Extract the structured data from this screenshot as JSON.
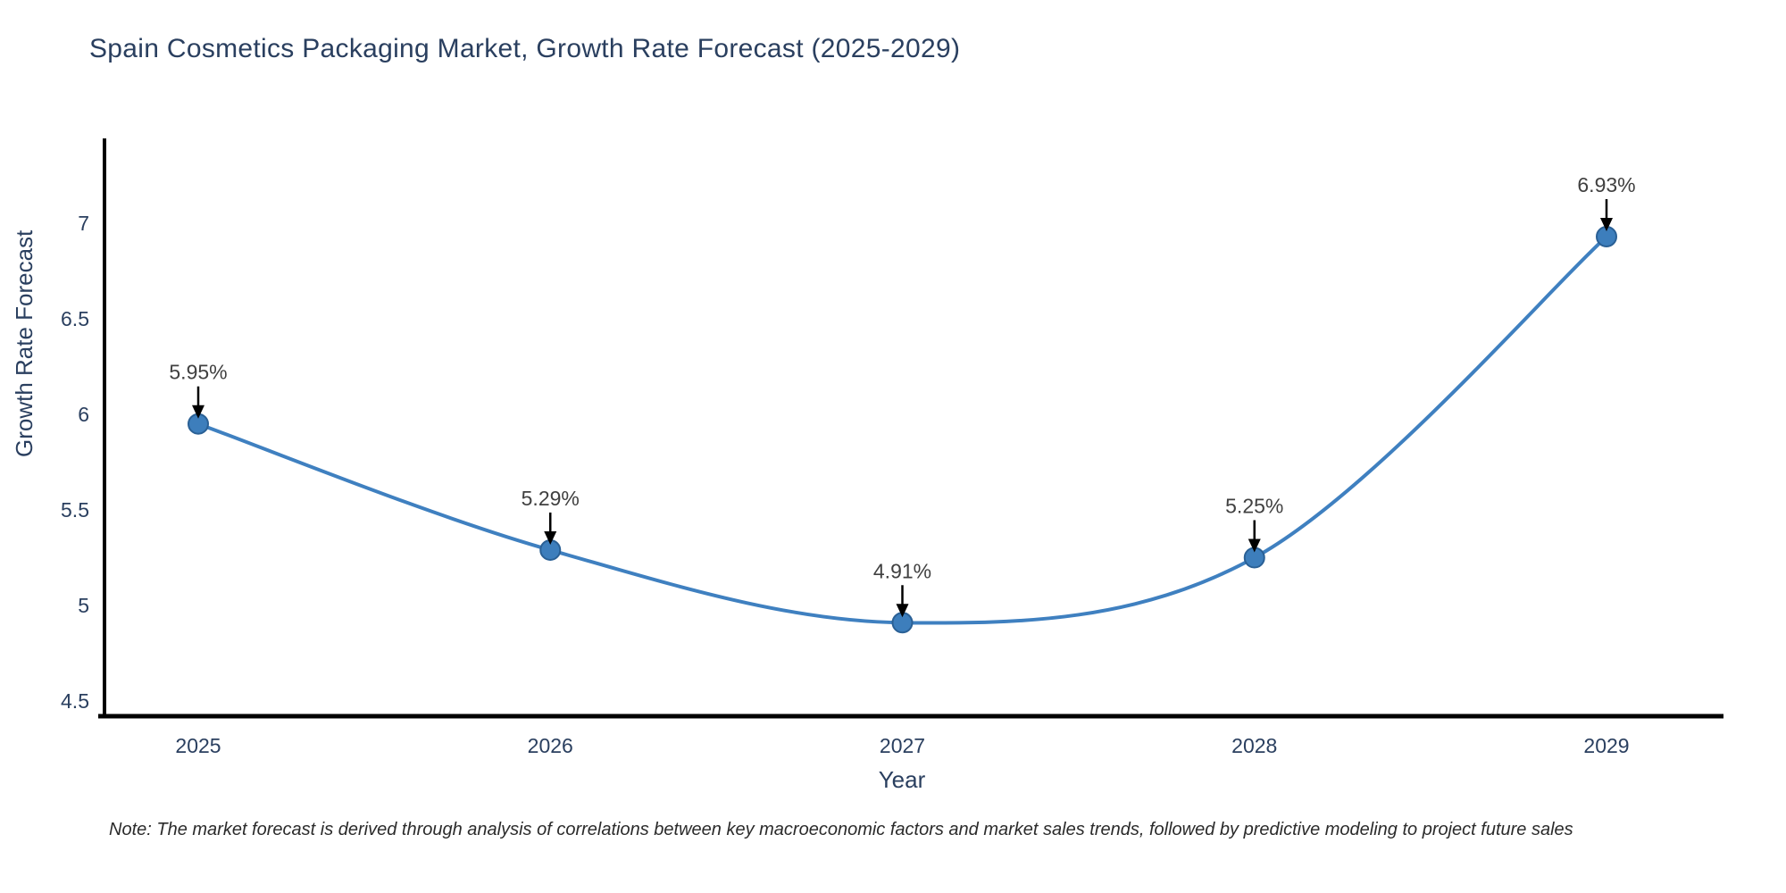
{
  "note": "Note: The market forecast is derived through analysis of correlations between key macroeconomic factors and market sales trends, followed by predictive modeling to project future sales",
  "colors": {
    "background": "#ffffff",
    "title_text": "#2a3f5f",
    "axis_text": "#2a3f5f",
    "annotation_text": "#404040",
    "line": "#3f80c0",
    "marker_fill": "#3d7ebc",
    "marker_edge": "#2a6095",
    "axis_line": "#000000",
    "arrow": "#000000",
    "note_text": "#2b2b2b"
  },
  "chart_data": {
    "type": "line",
    "title": "Spain Cosmetics Packaging Market, Growth Rate Forecast (2025-2029)",
    "xlabel": "Year",
    "ylabel": "Growth Rate Forecast",
    "x": [
      "2025",
      "2026",
      "2027",
      "2028",
      "2029"
    ],
    "values": [
      5.95,
      5.29,
      4.91,
      5.25,
      6.93
    ],
    "point_labels": [
      "5.95%",
      "5.29%",
      "4.91%",
      "5.25%",
      "6.93%"
    ],
    "ytick_labels": [
      "4.5",
      "5",
      "5.5",
      "6",
      "6.5",
      "7"
    ],
    "ytick_values": [
      4.5,
      5,
      5.5,
      6,
      6.5,
      7
    ],
    "ylim": [
      4.43,
      7.47
    ],
    "line_shape": "spline",
    "markers": true,
    "grid": false,
    "legend": "none",
    "annotation_style": "percentage label above each point with black arrow pointing down to marker"
  }
}
